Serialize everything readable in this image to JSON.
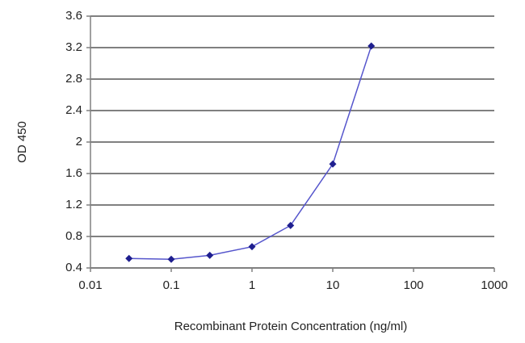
{
  "chart_data": {
    "type": "line",
    "x_label": "Recombinant Protein Concentration (ng/ml)",
    "y_label": "OD 450",
    "x": [
      0.03,
      0.1,
      0.3,
      1,
      3,
      10,
      30
    ],
    "values": [
      0.52,
      0.51,
      0.56,
      0.67,
      0.94,
      1.72,
      3.22
    ],
    "color": "#1f1f8f",
    "line_color": "#5555cc",
    "x_log": true,
    "xlim": [
      0.01,
      1000
    ],
    "xticks": [
      0.01,
      0.1,
      1,
      10,
      100,
      1000
    ],
    "ylim": [
      0.4,
      3.6
    ],
    "yticks": [
      0.4,
      0.8,
      1.2,
      1.6,
      2,
      2.4,
      2.8,
      3.2,
      3.6
    ],
    "grid": true
  }
}
